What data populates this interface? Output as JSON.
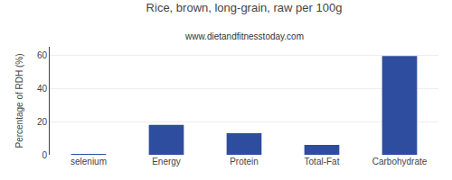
{
  "chart_data": {
    "type": "bar",
    "title": "Rice, brown, long-grain, raw per 100g",
    "subtitle": "www.dietandfitnesstoday.com",
    "categories": [
      "selenium",
      "Energy",
      "Protein",
      "Total-Fat",
      "Carbohydrate"
    ],
    "values": [
      0.3,
      18,
      13,
      6,
      59.5
    ],
    "color": "#2e4d9e",
    "ylabel": "Percentage of RDH (%)",
    "ylim": [
      0,
      65
    ],
    "yticks": [
      0,
      20,
      40,
      60
    ],
    "grid": true
  }
}
